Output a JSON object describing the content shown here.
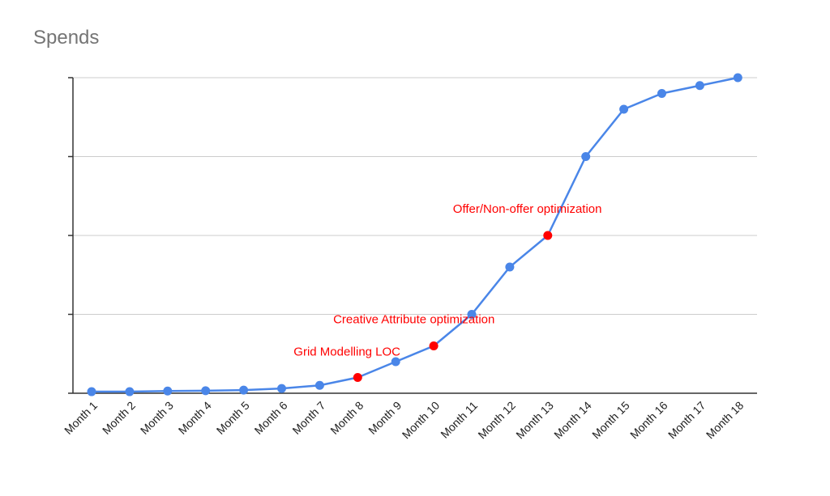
{
  "chart_data": {
    "type": "line",
    "title": "Spends",
    "xlabel": "",
    "ylabel": "",
    "ylim": [
      0,
      100
    ],
    "grid": true,
    "categories": [
      "Month 1",
      "Month 2",
      "Month 3",
      "Month 4",
      "Month 5",
      "Month 6",
      "Month 7",
      "Month 8",
      "Month 9",
      "Month 10",
      "Month 11",
      "Month 12",
      "Month 13",
      "Month 14",
      "Month 15",
      "Month 16",
      "Month 17",
      "Month 18"
    ],
    "series": [
      {
        "values": [
          0.5,
          0.5,
          0.7,
          0.8,
          1,
          1.5,
          2.5,
          5,
          10,
          15,
          25,
          40,
          50,
          75,
          90,
          95,
          97.5,
          100
        ],
        "color": "#4a86e8"
      }
    ],
    "highlight_color": "#ff0000",
    "annotations": [
      {
        "index": 7,
        "label": "Grid Modelling LOC"
      },
      {
        "index": 9,
        "label": "Creative Attribute optimization"
      },
      {
        "index": 12,
        "label": "Offer/Non-offer optimization"
      }
    ]
  }
}
